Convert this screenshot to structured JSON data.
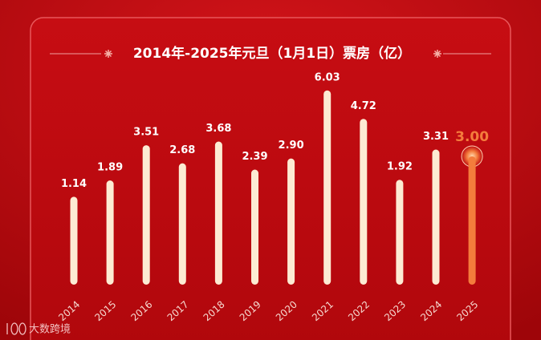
{
  "chart_data": {
    "type": "bar",
    "title": "2014年-2025年元旦（1月1日）票房（亿）",
    "categories": [
      "2014",
      "2015",
      "2016",
      "2017",
      "2018",
      "2019",
      "2020",
      "2021",
      "2022",
      "2023",
      "2024",
      "2025"
    ],
    "values": [
      1.14,
      1.89,
      3.51,
      2.68,
      3.68,
      2.39,
      2.9,
      6.03,
      4.72,
      1.92,
      3.31,
      3.0
    ],
    "value_labels": [
      "1.14",
      "1.89",
      "3.51",
      "2.68",
      "3.68",
      "2.39",
      "2.90",
      "6.03",
      "4.72",
      "1.92",
      "3.31",
      "3.00"
    ],
    "colors": [
      "#fdebd3",
      "#fdebd3",
      "#fdebd3",
      "#fdebd3",
      "#fdebd3",
      "#fdebd3",
      "#fdebd3",
      "#fdebd3",
      "#fdebd3",
      "#fdebd3",
      "#fdebd3",
      "#f47c3c"
    ],
    "ylim": [
      -2.9,
      6.5
    ],
    "watermark": "大数跨境"
  }
}
